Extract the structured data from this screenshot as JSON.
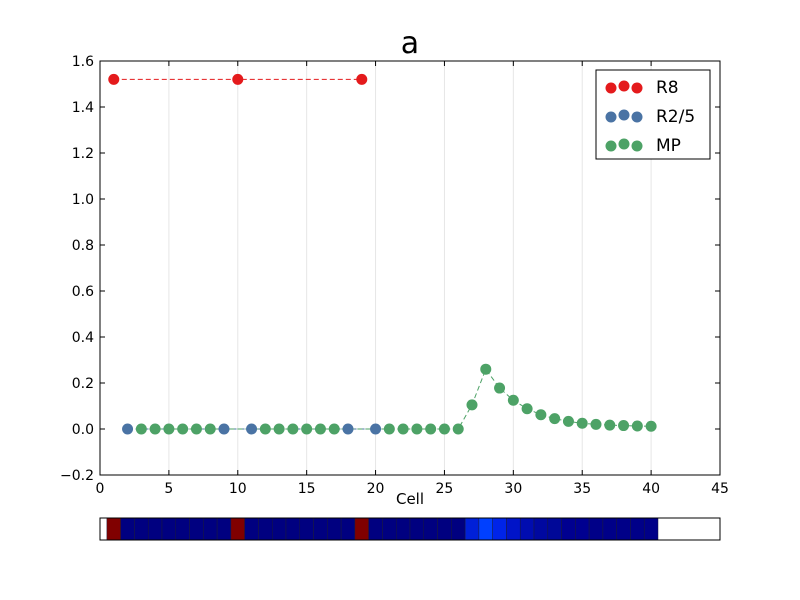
{
  "chart_data": {
    "type": "scatter",
    "title": "a",
    "xlabel": "Cell",
    "ylabel": "",
    "xlim": [
      0,
      45
    ],
    "ylim": [
      -0.2,
      1.6
    ],
    "xticks": [
      0,
      5,
      10,
      15,
      20,
      25,
      30,
      35,
      40,
      45
    ],
    "yticks": [
      -0.2,
      0.0,
      0.2,
      0.4,
      0.6,
      0.8,
      1.0,
      1.2,
      1.4,
      1.6
    ],
    "xtick_labels": [
      "0",
      "5",
      "10",
      "15",
      "20",
      "25",
      "30",
      "35",
      "40",
      "45"
    ],
    "ytick_labels": [
      "−0.2",
      "0.0",
      "0.2",
      "0.4",
      "0.6",
      "0.8",
      "1.0",
      "1.2",
      "1.4",
      "1.6"
    ],
    "vertical_grid": true,
    "legend_placement": "top-right",
    "series": [
      {
        "name": "R8",
        "color": "#e41a1c",
        "line_style": "dashed",
        "x": [
          1,
          10,
          19
        ],
        "y": [
          1.52,
          1.52,
          1.52
        ]
      },
      {
        "name": "R2/5",
        "color": "#4a73a4",
        "line_style": "dashed",
        "x": [
          2,
          9,
          11,
          18,
          20
        ],
        "y": [
          0.0,
          0.0,
          0.0,
          0.0,
          0.0
        ]
      },
      {
        "name": "MP",
        "color": "#4da266",
        "line_style": "dashed",
        "x": [
          3,
          4,
          5,
          6,
          7,
          8,
          12,
          13,
          14,
          15,
          16,
          17,
          21,
          22,
          23,
          24,
          25,
          26,
          27,
          28,
          29,
          30,
          31,
          32,
          33,
          34,
          35,
          36,
          37,
          38,
          39,
          40
        ],
        "y": [
          0,
          0,
          0,
          0,
          0,
          0,
          0,
          0,
          0,
          0,
          0,
          0,
          0,
          0,
          0,
          0,
          0,
          0,
          0.105,
          0.26,
          0.178,
          0.125,
          0.088,
          0.062,
          0.045,
          0.033,
          0.025,
          0.02,
          0.017,
          0.015,
          0.013,
          0.012
        ]
      }
    ],
    "heat_strip": {
      "cells": [
        1,
        40
      ],
      "colors": [
        "#800000",
        "#000080",
        "#000080",
        "#000080",
        "#000080",
        "#000080",
        "#000080",
        "#000080",
        "#000080",
        "#800000",
        "#000080",
        "#000080",
        "#000080",
        "#000080",
        "#000080",
        "#000080",
        "#000080",
        "#000080",
        "#800000",
        "#000080",
        "#000080",
        "#000080",
        "#000080",
        "#000080",
        "#000080",
        "#000080",
        "#0020d8",
        "#0040ff",
        "#0024e8",
        "#0014c8",
        "#000cb0",
        "#0008a0",
        "#000898",
        "#000090",
        "#000090",
        "#000088",
        "#000088",
        "#000088",
        "#000088",
        "#000088"
      ]
    }
  }
}
